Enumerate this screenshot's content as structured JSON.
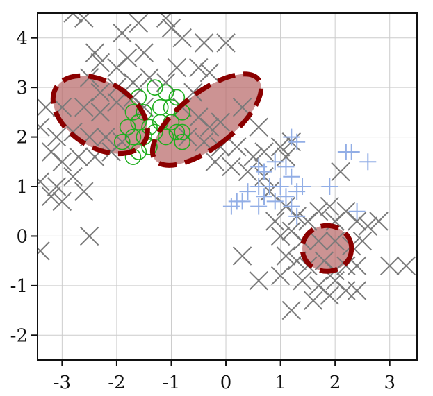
{
  "chart_data": {
    "type": "scatter",
    "title": "",
    "xlabel": "",
    "ylabel": "",
    "xlim": [
      -3.45,
      3.5
    ],
    "ylim": [
      -2.5,
      4.5
    ],
    "grid": true,
    "x_ticks": [
      -3,
      -2,
      -1,
      0,
      1,
      2,
      3
    ],
    "y_ticks": [
      -2,
      -1,
      0,
      1,
      2,
      3,
      4
    ],
    "x_tick_labels": [
      "-3",
      "-2",
      "-1",
      "0",
      "1",
      "2",
      "3"
    ],
    "y_tick_labels": [
      "-2",
      "-1",
      "0",
      "1",
      "2",
      "3",
      "4"
    ],
    "colors": {
      "gray_x": "#7a7a7a",
      "green_circle": "#1fae1f",
      "blue_plus": "#92aee6",
      "ellipse_fill": "#b86a6a",
      "ellipse_edge": "#8b0000",
      "grid": "#cccccc"
    },
    "series": [
      {
        "marker": "x",
        "color_key": "gray_x",
        "points": [
          [
            -2.8,
            4.5
          ],
          [
            -2.6,
            4.4
          ],
          [
            -2.4,
            3.7
          ],
          [
            -1.9,
            4.1
          ],
          [
            -1.6,
            4.3
          ],
          [
            -1.1,
            4.4
          ],
          [
            -1.0,
            4.2
          ],
          [
            -0.8,
            4.0
          ],
          [
            -0.4,
            3.9
          ],
          [
            0.0,
            3.9
          ],
          [
            -2.3,
            3.5
          ],
          [
            -2.0,
            3.4
          ],
          [
            -1.8,
            3.6
          ],
          [
            -1.5,
            3.7
          ],
          [
            -0.9,
            3.4
          ],
          [
            -0.5,
            3.4
          ],
          [
            -0.3,
            3.3
          ],
          [
            -0.6,
            2.9
          ],
          [
            -2.5,
            3.2
          ],
          [
            -2.3,
            2.9
          ],
          [
            -2.0,
            3.0
          ],
          [
            -1.7,
            3.1
          ],
          [
            -1.4,
            3.2
          ],
          [
            -1.1,
            3.1
          ],
          [
            -3.3,
            2.6
          ],
          [
            -3.0,
            2.6
          ],
          [
            -2.6,
            2.6
          ],
          [
            -2.3,
            2.5
          ],
          [
            -2.0,
            2.7
          ],
          [
            -1.7,
            2.8
          ],
          [
            -1.5,
            2.6
          ],
          [
            -0.8,
            2.6
          ],
          [
            -0.5,
            2.4
          ],
          [
            -0.3,
            2.2
          ],
          [
            -0.1,
            2.3
          ],
          [
            0.3,
            2.6
          ],
          [
            0.6,
            2.2
          ],
          [
            -3.4,
            2.2
          ],
          [
            -3.1,
            2.0
          ],
          [
            -2.8,
            2.1
          ],
          [
            -2.5,
            2.0
          ],
          [
            -2.2,
            2.0
          ],
          [
            -1.9,
            1.9
          ],
          [
            -0.7,
            2.0
          ],
          [
            -0.4,
            1.9
          ],
          [
            -0.1,
            1.8
          ],
          [
            0.2,
            1.8
          ],
          [
            0.5,
            1.6
          ],
          [
            0.7,
            1.7
          ],
          [
            -3.2,
            1.7
          ],
          [
            -3.0,
            1.5
          ],
          [
            -2.7,
            1.6
          ],
          [
            -2.4,
            1.6
          ],
          [
            -2.1,
            1.7
          ],
          [
            -0.2,
            1.5
          ],
          [
            0.1,
            1.4
          ],
          [
            0.4,
            1.3
          ],
          [
            -3.4,
            1.1
          ],
          [
            -3.1,
            1.0
          ],
          [
            -2.8,
            1.2
          ],
          [
            -2.6,
            0.9
          ],
          [
            -3.2,
            0.8
          ],
          [
            -3.0,
            0.7
          ],
          [
            -3.4,
            -0.3
          ],
          [
            -2.5,
            0.0
          ],
          [
            1.0,
            1.8
          ],
          [
            1.1,
            1.6
          ],
          [
            1.2,
            1.9
          ],
          [
            0.7,
            1.2
          ],
          [
            0.8,
            0.9
          ],
          [
            1.1,
            0.6
          ],
          [
            1.3,
            0.4
          ],
          [
            1.7,
            0.5
          ],
          [
            1.9,
            0.6
          ],
          [
            2.2,
            0.5
          ],
          [
            2.0,
            0.3
          ],
          [
            2.4,
            0.3
          ],
          [
            1.5,
            0.3
          ],
          [
            1.2,
            0.1
          ],
          [
            0.9,
            0.3
          ],
          [
            2.6,
            0.2
          ],
          [
            2.8,
            0.3
          ],
          [
            1.0,
            0.0
          ],
          [
            1.4,
            -0.1
          ],
          [
            1.7,
            -0.1
          ],
          [
            2.0,
            -0.1
          ],
          [
            2.3,
            -0.2
          ],
          [
            2.5,
            -0.1
          ],
          [
            1.1,
            -0.4
          ],
          [
            1.3,
            -0.5
          ],
          [
            1.5,
            -0.6
          ],
          [
            1.8,
            -0.5
          ],
          [
            2.0,
            -0.7
          ],
          [
            2.2,
            -0.6
          ],
          [
            2.4,
            -0.6
          ],
          [
            1.0,
            -0.8
          ],
          [
            1.4,
            -0.9
          ],
          [
            1.7,
            -1.0
          ],
          [
            2.0,
            -0.9
          ],
          [
            2.2,
            -1.1
          ],
          [
            2.4,
            -1.1
          ],
          [
            1.6,
            -1.3
          ],
          [
            1.9,
            -1.2
          ],
          [
            1.2,
            -1.5
          ],
          [
            3.0,
            -0.6
          ],
          [
            3.3,
            -0.6
          ],
          [
            0.6,
            -0.9
          ],
          [
            0.3,
            -0.4
          ],
          [
            2.1,
            1.3
          ]
        ]
      },
      {
        "marker": "o",
        "color_key": "green_circle",
        "points": [
          [
            -1.6,
            2.8
          ],
          [
            -1.3,
            3.0
          ],
          [
            -1.1,
            2.9
          ],
          [
            -0.9,
            2.8
          ],
          [
            -1.7,
            2.5
          ],
          [
            -1.5,
            2.5
          ],
          [
            -1.2,
            2.6
          ],
          [
            -1.0,
            2.6
          ],
          [
            -0.8,
            2.5
          ],
          [
            -1.8,
            2.2
          ],
          [
            -1.6,
            2.3
          ],
          [
            -1.4,
            2.2
          ],
          [
            -1.2,
            2.3
          ],
          [
            -1.0,
            2.3
          ],
          [
            -0.8,
            2.1
          ],
          [
            -1.9,
            1.9
          ],
          [
            -1.7,
            2.0
          ],
          [
            -1.5,
            2.0
          ],
          [
            -1.3,
            2.1
          ],
          [
            -1.1,
            2.0
          ],
          [
            -0.9,
            2.1
          ],
          [
            -1.6,
            1.7
          ],
          [
            -1.4,
            1.8
          ],
          [
            -1.7,
            1.6
          ],
          [
            -0.8,
            1.9
          ]
        ]
      },
      {
        "marker": "+",
        "color_key": "blue_plus",
        "points": [
          [
            1.2,
            2.0
          ],
          [
            1.3,
            1.9
          ],
          [
            0.9,
            1.5
          ],
          [
            1.1,
            1.4
          ],
          [
            1.2,
            1.2
          ],
          [
            0.7,
            1.3
          ],
          [
            0.6,
            1.0
          ],
          [
            0.8,
            1.0
          ],
          [
            1.0,
            1.0
          ],
          [
            1.1,
            0.8
          ],
          [
            1.3,
            0.9
          ],
          [
            0.9,
            0.7
          ],
          [
            1.2,
            0.6
          ],
          [
            0.6,
            0.6
          ],
          [
            0.4,
            0.9
          ],
          [
            0.3,
            0.7
          ],
          [
            0.2,
            0.7
          ],
          [
            0.1,
            0.6
          ],
          [
            1.3,
            0.4
          ],
          [
            1.4,
            1.0
          ],
          [
            1.9,
            1.0
          ],
          [
            2.2,
            1.7
          ],
          [
            2.3,
            1.7
          ],
          [
            2.6,
            1.5
          ],
          [
            2.4,
            0.5
          ],
          [
            0.6,
            1.4
          ],
          [
            0.7,
            0.8
          ]
        ]
      }
    ],
    "ellipses": [
      {
        "cx": -2.3,
        "cy": 2.45,
        "rx": 0.6,
        "ry": 0.95,
        "angle_deg": 58
      },
      {
        "cx": -0.35,
        "cy": 2.35,
        "rx": 0.5,
        "ry": 1.2,
        "angle_deg": -52
      },
      {
        "cx": 1.85,
        "cy": -0.25,
        "rx": 0.45,
        "ry": 0.42,
        "angle_deg": 0
      }
    ]
  }
}
